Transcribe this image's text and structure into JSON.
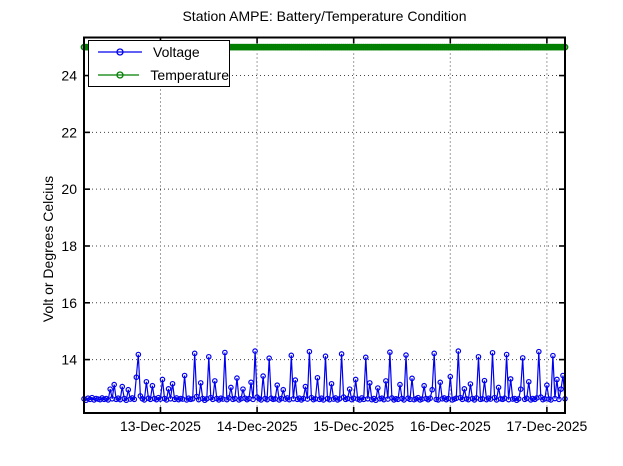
{
  "chart_data": {
    "type": "line",
    "title": "Station AMPE: Battery/Temperature Condition",
    "ylabel": "Volt or Degrees Celcius",
    "xlabel": "",
    "grid": "dotted",
    "legend_position": "top-left",
    "ylim": [
      12.12,
      25.34
    ],
    "yticks": [
      14,
      16,
      18,
      20,
      22,
      24
    ],
    "xlim_hours": [
      0,
      119.5
    ],
    "xtick_hours": [
      19,
      43,
      67,
      91,
      115
    ],
    "xtick_labels": [
      "13-Dec-2025",
      "14-Dec-2025",
      "15-Dec-2025",
      "16-Dec-2025",
      "17-Dec-2025"
    ],
    "colors": {
      "voltage": "#0000EE",
      "temperature": "#007F00",
      "grid": "#444444",
      "axis": "#000000",
      "background": "#FFFFFF"
    },
    "series": [
      {
        "name": "Voltage",
        "color": "#0000EE",
        "marker": "circle",
        "x_start_hour": 0,
        "x_step_hours": 0.5,
        "values": [
          12.62,
          12.57,
          12.64,
          12.6,
          12.66,
          12.58,
          12.63,
          12.61,
          12.59,
          12.65,
          12.6,
          12.63,
          12.58,
          12.96,
          12.62,
          13.12,
          12.6,
          12.64,
          12.59,
          13.05,
          12.63,
          12.57,
          12.94,
          12.61,
          12.65,
          12.6,
          13.38,
          14.18,
          12.72,
          12.62,
          12.58,
          13.22,
          12.64,
          12.6,
          13.08,
          12.63,
          12.59,
          12.66,
          12.61,
          13.3,
          12.63,
          12.58,
          12.97,
          12.62,
          13.15,
          12.6,
          12.65,
          12.59,
          12.63,
          12.61,
          13.44,
          12.58,
          12.64,
          12.6,
          12.62,
          14.22,
          12.7,
          12.59,
          13.18,
          12.63,
          12.57,
          12.62,
          14.1,
          12.66,
          12.6,
          13.25,
          12.63,
          12.58,
          12.64,
          12.61,
          14.25,
          12.59,
          12.65,
          13.02,
          12.6,
          12.63,
          13.35,
          12.58,
          12.62,
          12.96,
          12.64,
          12.59,
          12.63,
          13.2,
          12.6,
          14.3,
          12.68,
          12.62,
          12.58,
          13.42,
          12.63,
          12.59,
          14.05,
          12.64,
          12.6,
          12.62,
          13.1,
          12.58,
          12.63,
          12.94,
          12.61,
          12.65,
          12.59,
          14.15,
          12.62,
          13.28,
          12.6,
          12.64,
          12.58,
          12.63,
          13.05,
          12.61,
          14.28,
          12.66,
          12.59,
          12.62,
          13.36,
          12.6,
          12.64,
          12.58,
          14.12,
          12.63,
          12.59,
          13.15,
          12.61,
          12.65,
          12.58,
          12.62,
          14.2,
          12.68,
          12.6,
          12.63,
          12.96,
          12.59,
          12.64,
          13.3,
          12.61,
          12.58,
          12.65,
          12.6,
          14.08,
          12.62,
          13.18,
          12.59,
          12.63,
          12.57,
          13.0,
          12.62,
          12.64,
          12.59,
          13.25,
          12.61,
          14.26,
          12.65,
          12.58,
          12.62,
          12.6,
          13.12,
          12.63,
          12.58,
          14.16,
          12.64,
          12.6,
          13.34,
          12.59,
          12.62,
          12.66,
          12.58,
          12.61,
          13.08,
          12.63,
          12.59,
          12.64,
          12.94,
          14.22,
          12.6,
          12.58,
          13.2,
          12.62,
          12.65,
          12.59,
          12.63,
          13.4,
          12.58,
          12.61,
          12.64,
          14.3,
          12.66,
          12.6,
          12.97,
          12.62,
          12.59,
          13.14,
          12.63,
          12.58,
          12.65,
          14.1,
          12.6,
          12.62,
          13.26,
          12.59,
          12.64,
          12.61,
          14.24,
          12.66,
          12.58,
          13.02,
          12.62,
          12.6,
          12.64,
          14.18,
          12.59,
          13.32,
          12.61,
          12.63,
          12.57,
          12.62,
          12.96,
          14.06,
          12.6,
          12.64,
          13.22,
          12.58,
          12.63,
          12.6,
          12.65,
          14.28,
          12.68,
          12.59,
          12.62,
          13.1,
          12.61,
          12.58,
          14.14,
          12.63,
          13.3,
          12.6,
          12.96,
          13.44,
          12.62
        ]
      },
      {
        "name": "Temperature",
        "color": "#007F00",
        "marker": "circle",
        "constant_value": 25,
        "x_start_hour": 0,
        "x_step_hours": 0.5,
        "n_points": 240
      }
    ]
  }
}
